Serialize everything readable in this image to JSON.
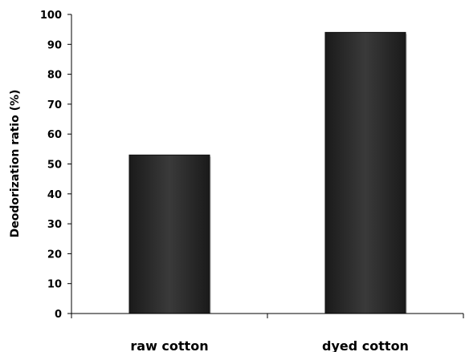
{
  "chart_data": {
    "type": "bar",
    "title": "",
    "xlabel": "",
    "ylabel": "Deodorization  ratio (%)",
    "categories": [
      "raw cotton",
      "dyed cotton"
    ],
    "values": [
      53,
      94
    ],
    "ylim": [
      0,
      100
    ],
    "yticks": [
      0,
      10,
      20,
      30,
      40,
      50,
      60,
      70,
      80,
      90,
      100
    ],
    "grid": false,
    "legend": "none",
    "bar_color": "#2b2b2b"
  }
}
